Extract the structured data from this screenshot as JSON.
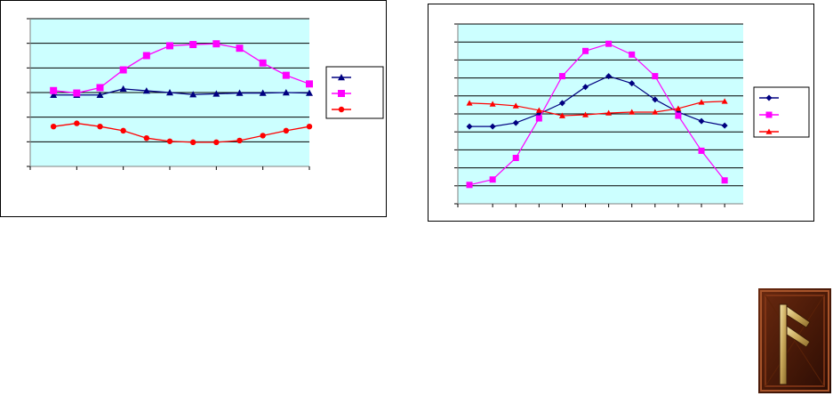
{
  "colors": {
    "plot_bg": "#CCFFFF",
    "grid": "#000000",
    "blue": "#000080",
    "magenta": "#FF00FF",
    "red": "#FF0000"
  },
  "icons": {
    "rune_tile": "rune-icon"
  },
  "chart_data": [
    {
      "type": "line",
      "title": "",
      "xlabel": "",
      "ylabel": "",
      "x": [
        1,
        2,
        3,
        4,
        5,
        6,
        7,
        8,
        9,
        10,
        11,
        12
      ],
      "xlim": [
        0,
        12
      ],
      "ylim": [
        0,
        6
      ],
      "grid": true,
      "legend_position": "right",
      "series": [
        {
          "marker": "triangle",
          "color": "#000080",
          "values": [
            2.9,
            2.9,
            2.9,
            3.15,
            3.07,
            3.0,
            2.92,
            2.95,
            2.98,
            2.98,
            3.0,
            2.98
          ]
        },
        {
          "marker": "square",
          "color": "#FF00FF",
          "values": [
            3.08,
            2.98,
            3.2,
            3.92,
            4.5,
            4.9,
            4.95,
            4.98,
            4.8,
            4.2,
            3.7,
            3.35
          ]
        },
        {
          "marker": "circle",
          "color": "#FF0000",
          "values": [
            1.62,
            1.75,
            1.62,
            1.45,
            1.15,
            1.02,
            0.98,
            0.98,
            1.05,
            1.25,
            1.45,
            1.62
          ]
        }
      ]
    },
    {
      "type": "line",
      "title": "",
      "xlabel": "",
      "ylabel": "",
      "x": [
        1,
        2,
        3,
        4,
        5,
        6,
        7,
        8,
        9,
        10,
        11,
        12
      ],
      "xlim": [
        0.5,
        12.8
      ],
      "ylim": [
        0,
        10
      ],
      "grid": true,
      "legend_position": "right",
      "series": [
        {
          "marker": "diamond",
          "color": "#000080",
          "values": [
            4.3,
            4.3,
            4.5,
            5.0,
            5.6,
            6.5,
            7.1,
            6.7,
            5.8,
            5.1,
            4.6,
            4.35
          ]
        },
        {
          "marker": "square",
          "color": "#FF00FF",
          "values": [
            1.05,
            1.35,
            2.55,
            4.75,
            7.1,
            8.5,
            8.9,
            8.3,
            7.1,
            4.9,
            2.95,
            1.3
          ]
        },
        {
          "marker": "triangle",
          "color": "#FF0000",
          "values": [
            5.6,
            5.55,
            5.45,
            5.2,
            4.9,
            4.95,
            5.05,
            5.1,
            5.1,
            5.3,
            5.65,
            5.7
          ]
        }
      ]
    }
  ]
}
